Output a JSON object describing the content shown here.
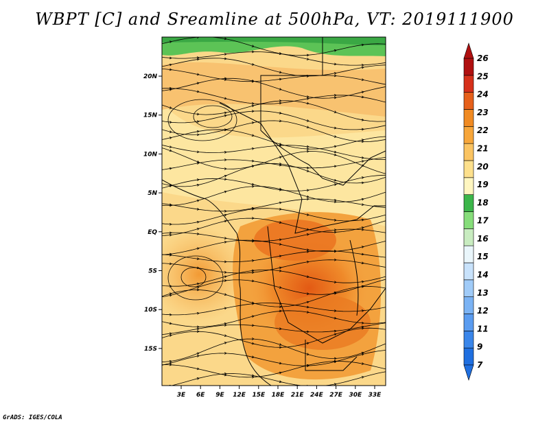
{
  "title": "WBPT [C] and Sreamline at 500hPa, VT: 2019111900",
  "footer": "GrADS: IGES/COLA",
  "map": {
    "lat_labels": [
      "20N",
      "15N",
      "10N",
      "5N",
      "EQ",
      "5S",
      "10S",
      "15S"
    ],
    "lon_labels": [
      "3E",
      "6E",
      "9E",
      "12E",
      "15E",
      "18E",
      "21E",
      "24E",
      "27E",
      "30E",
      "33E"
    ]
  },
  "colorbar": {
    "labels": [
      "7",
      "9",
      "11",
      "12",
      "13",
      "14",
      "15",
      "16",
      "17",
      "18",
      "19",
      "20",
      "21",
      "22",
      "23",
      "24",
      "25",
      "26"
    ],
    "colors": [
      "#1f6fe0",
      "#3a86ea",
      "#5a9cf0",
      "#7bb3f4",
      "#a0cbf8",
      "#c8e2fb",
      "#eaf6fb",
      "#c8ecc0",
      "#86dd7a",
      "#3cb64a",
      "#fff6c0",
      "#fde08c",
      "#fbc462",
      "#f7a63a",
      "#f08a22",
      "#e6601a",
      "#d6301a",
      "#b01010"
    ]
  }
}
